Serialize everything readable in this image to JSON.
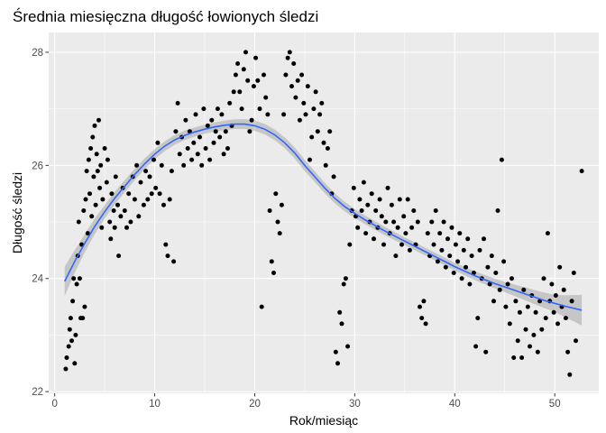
{
  "chart_data": {
    "type": "scatter",
    "title": "Średnia miesięczna długość łowionych śledzi",
    "xlabel": "Rok/miesiąc",
    "ylabel": "Długość śledzi",
    "xlim": [
      -0.6,
      54.4
    ],
    "ylim": [
      21.97,
      28.35
    ],
    "x_ticks": [
      0,
      10,
      20,
      30,
      40,
      50
    ],
    "y_ticks": [
      22,
      24,
      26,
      28
    ],
    "grid": true,
    "legend": "none",
    "colors": {
      "panel": "#ebebeb",
      "grid": "#ffffff",
      "points": "#000000",
      "smooth_line": "#3366ff",
      "ribbon": "#999999"
    },
    "points": [
      [
        1.1,
        22.4
      ],
      [
        1.2,
        22.6
      ],
      [
        1.4,
        22.8
      ],
      [
        1.5,
        23.1
      ],
      [
        1.6,
        23.3
      ],
      [
        1.7,
        22.9
      ],
      [
        1.8,
        23.6
      ],
      [
        1.9,
        24.0
      ],
      [
        2.0,
        22.5
      ],
      [
        2.1,
        23.0
      ],
      [
        2.2,
        23.9
      ],
      [
        2.3,
        24.4
      ],
      [
        2.5,
        24.0
      ],
      [
        2.6,
        23.3
      ],
      [
        2.8,
        23.3
      ],
      [
        3.0,
        23.5
      ],
      [
        2.4,
        25.0
      ],
      [
        2.7,
        24.6
      ],
      [
        2.9,
        25.2
      ],
      [
        3.1,
        25.4
      ],
      [
        3.2,
        25.9
      ],
      [
        3.3,
        24.8
      ],
      [
        3.4,
        26.1
      ],
      [
        3.5,
        25.5
      ],
      [
        3.6,
        26.3
      ],
      [
        3.7,
        25.1
      ],
      [
        3.8,
        26.5
      ],
      [
        3.9,
        25.8
      ],
      [
        4.0,
        26.7
      ],
      [
        4.1,
        25.3
      ],
      [
        4.2,
        26.2
      ],
      [
        4.3,
        25.9
      ],
      [
        4.4,
        26.8
      ],
      [
        4.5,
        25.6
      ],
      [
        4.6,
        26.0
      ],
      [
        4.7,
        24.9
      ],
      [
        4.8,
        25.4
      ],
      [
        5.0,
        26.3
      ],
      [
        5.2,
        25.7
      ],
      [
        5.3,
        26.1
      ],
      [
        5.5,
        25.0
      ],
      [
        5.6,
        24.7
      ],
      [
        5.7,
        25.5
      ],
      [
        5.9,
        25.2
      ],
      [
        6.0,
        24.9
      ],
      [
        6.1,
        25.8
      ],
      [
        6.3,
        25.3
      ],
      [
        6.4,
        24.4
      ],
      [
        6.6,
        25.1
      ],
      [
        6.8,
        25.6
      ],
      [
        7.0,
        25.2
      ],
      [
        7.2,
        24.9
      ],
      [
        7.4,
        25.5
      ],
      [
        7.6,
        25.0
      ],
      [
        7.8,
        25.8
      ],
      [
        8.0,
        25.4
      ],
      [
        8.2,
        26.0
      ],
      [
        8.4,
        25.1
      ],
      [
        8.6,
        25.7
      ],
      [
        8.9,
        25.3
      ],
      [
        9.1,
        25.9
      ],
      [
        9.3,
        25.4
      ],
      [
        9.5,
        25.8
      ],
      [
        9.7,
        25.5
      ],
      [
        9.9,
        26.1
      ],
      [
        10.1,
        25.6
      ],
      [
        10.3,
        26.4
      ],
      [
        10.5,
        25.5
      ],
      [
        10.7,
        26.0
      ],
      [
        10.9,
        25.3
      ],
      [
        11.1,
        24.6
      ],
      [
        11.3,
        24.4
      ],
      [
        11.5,
        25.4
      ],
      [
        11.7,
        25.9
      ],
      [
        11.9,
        24.3
      ],
      [
        12.1,
        26.6
      ],
      [
        12.3,
        27.1
      ],
      [
        12.5,
        26.2
      ],
      [
        12.7,
        26.5
      ],
      [
        12.9,
        26.0
      ],
      [
        13.1,
        26.8
      ],
      [
        13.3,
        26.3
      ],
      [
        13.5,
        26.6
      ],
      [
        13.7,
        26.1
      ],
      [
        13.9,
        26.4
      ],
      [
        14.1,
        26.9
      ],
      [
        14.3,
        26.2
      ],
      [
        14.5,
        26.5
      ],
      [
        14.7,
        26.0
      ],
      [
        14.9,
        27.0
      ],
      [
        15.1,
        26.3
      ],
      [
        15.3,
        26.7
      ],
      [
        15.5,
        26.1
      ],
      [
        15.7,
        26.8
      ],
      [
        15.9,
        26.4
      ],
      [
        16.1,
        26.6
      ],
      [
        16.3,
        27.0
      ],
      [
        16.5,
        26.5
      ],
      [
        16.7,
        26.9
      ],
      [
        16.9,
        26.2
      ],
      [
        17.1,
        26.6
      ],
      [
        17.3,
        26.3
      ],
      [
        17.5,
        27.1
      ],
      [
        17.7,
        26.7
      ],
      [
        17.9,
        27.3
      ],
      [
        18.1,
        27.6
      ],
      [
        18.3,
        27.8
      ],
      [
        18.5,
        27.3
      ],
      [
        18.7,
        27.0
      ],
      [
        18.9,
        27.7
      ],
      [
        19.1,
        28.0
      ],
      [
        19.3,
        27.5
      ],
      [
        19.5,
        26.6
      ],
      [
        19.7,
        26.8
      ],
      [
        19.9,
        27.4
      ],
      [
        20.1,
        27.9
      ],
      [
        20.3,
        27.5
      ],
      [
        20.5,
        27.0
      ],
      [
        20.7,
        23.5
      ],
      [
        20.9,
        27.6
      ],
      [
        21.1,
        27.2
      ],
      [
        21.3,
        26.9
      ],
      [
        21.5,
        25.2
      ],
      [
        21.7,
        24.3
      ],
      [
        21.9,
        24.1
      ],
      [
        22.1,
        25.5
      ],
      [
        22.3,
        25.0
      ],
      [
        22.5,
        24.8
      ],
      [
        22.7,
        25.3
      ],
      [
        22.9,
        26.9
      ],
      [
        23.1,
        27.6
      ],
      [
        23.3,
        27.9
      ],
      [
        23.5,
        28.0
      ],
      [
        23.7,
        27.4
      ],
      [
        23.9,
        27.8
      ],
      [
        24.1,
        27.2
      ],
      [
        24.3,
        27.5
      ],
      [
        24.5,
        26.8
      ],
      [
        24.7,
        27.6
      ],
      [
        24.9,
        27.1
      ],
      [
        25.1,
        26.9
      ],
      [
        25.3,
        27.4
      ],
      [
        25.5,
        26.1
      ],
      [
        25.7,
        26.5
      ],
      [
        25.9,
        27.0
      ],
      [
        26.1,
        27.3
      ],
      [
        26.3,
        26.6
      ],
      [
        26.5,
        26.9
      ],
      [
        26.7,
        27.1
      ],
      [
        26.9,
        26.4
      ],
      [
        27.1,
        26.0
      ],
      [
        27.3,
        26.3
      ],
      [
        27.5,
        26.6
      ],
      [
        27.7,
        25.5
      ],
      [
        27.9,
        25.8
      ],
      [
        28.1,
        22.7
      ],
      [
        28.3,
        22.5
      ],
      [
        28.5,
        23.4
      ],
      [
        28.7,
        23.2
      ],
      [
        28.9,
        23.9
      ],
      [
        29.1,
        24.0
      ],
      [
        29.3,
        22.8
      ],
      [
        29.5,
        24.6
      ],
      [
        29.7,
        25.2
      ],
      [
        29.9,
        25.6
      ],
      [
        30.1,
        25.1
      ],
      [
        30.3,
        24.9
      ],
      [
        30.5,
        25.4
      ],
      [
        30.7,
        25.2
      ],
      [
        30.9,
        25.7
      ],
      [
        31.1,
        24.8
      ],
      [
        31.3,
        25.3
      ],
      [
        31.5,
        25.0
      ],
      [
        31.7,
        25.5
      ],
      [
        31.9,
        24.7
      ],
      [
        32.1,
        25.2
      ],
      [
        32.3,
        24.9
      ],
      [
        32.5,
        25.4
      ],
      [
        32.7,
        25.1
      ],
      [
        32.9,
        24.6
      ],
      [
        33.1,
        25.0
      ],
      [
        33.3,
        25.6
      ],
      [
        33.5,
        24.8
      ],
      [
        33.7,
        25.3
      ],
      [
        33.9,
        25.0
      ],
      [
        34.1,
        24.4
      ],
      [
        34.3,
        24.9
      ],
      [
        34.5,
        25.4
      ],
      [
        34.7,
        24.6
      ],
      [
        34.9,
        25.1
      ],
      [
        35.1,
        24.8
      ],
      [
        35.3,
        25.4
      ],
      [
        35.5,
        24.5
      ],
      [
        35.7,
        24.9
      ],
      [
        35.9,
        25.2
      ],
      [
        36.1,
        24.6
      ],
      [
        36.3,
        25.0
      ],
      [
        36.5,
        23.5
      ],
      [
        36.7,
        23.3
      ],
      [
        36.9,
        23.6
      ],
      [
        37.1,
        23.2
      ],
      [
        37.3,
        24.8
      ],
      [
        37.5,
        24.4
      ],
      [
        37.7,
        25.0
      ],
      [
        37.9,
        24.6
      ],
      [
        38.1,
        25.2
      ],
      [
        38.3,
        24.3
      ],
      [
        38.5,
        24.8
      ],
      [
        38.7,
        24.5
      ],
      [
        38.9,
        25.0
      ],
      [
        39.1,
        24.2
      ],
      [
        39.3,
        24.7
      ],
      [
        39.5,
        24.4
      ],
      [
        39.7,
        24.9
      ],
      [
        39.9,
        24.1
      ],
      [
        40.1,
        24.6
      ],
      [
        40.3,
        24.3
      ],
      [
        40.5,
        24.8
      ],
      [
        40.7,
        24.0
      ],
      [
        40.9,
        24.5
      ],
      [
        41.1,
        24.2
      ],
      [
        41.3,
        24.7
      ],
      [
        41.5,
        23.9
      ],
      [
        41.7,
        24.4
      ],
      [
        41.9,
        24.1
      ],
      [
        42.1,
        22.8
      ],
      [
        42.3,
        23.3
      ],
      [
        42.5,
        24.5
      ],
      [
        42.7,
        24.0
      ],
      [
        42.9,
        24.7
      ],
      [
        43.1,
        22.7
      ],
      [
        43.3,
        24.2
      ],
      [
        43.5,
        23.9
      ],
      [
        43.7,
        24.4
      ],
      [
        43.9,
        23.6
      ],
      [
        44.1,
        24.1
      ],
      [
        44.3,
        25.2
      ],
      [
        44.5,
        23.8
      ],
      [
        44.7,
        26.1
      ],
      [
        44.9,
        24.3
      ],
      [
        45.1,
        23.5
      ],
      [
        45.3,
        23.9
      ],
      [
        45.5,
        23.2
      ],
      [
        45.7,
        24.0
      ],
      [
        45.9,
        22.6
      ],
      [
        46.1,
        23.6
      ],
      [
        46.3,
        22.9
      ],
      [
        46.5,
        23.4
      ],
      [
        46.7,
        22.6
      ],
      [
        46.9,
        23.8
      ],
      [
        47.1,
        23.1
      ],
      [
        47.3,
        23.5
      ],
      [
        47.5,
        22.8
      ],
      [
        47.7,
        23.7
      ],
      [
        47.9,
        23.0
      ],
      [
        48.1,
        23.4
      ],
      [
        48.3,
        22.7
      ],
      [
        48.5,
        23.6
      ],
      [
        48.7,
        23.1
      ],
      [
        48.9,
        24.0
      ],
      [
        49.1,
        23.3
      ],
      [
        49.3,
        24.8
      ],
      [
        49.5,
        23.6
      ],
      [
        49.7,
        23.9
      ],
      [
        49.9,
        23.4
      ],
      [
        50.1,
        23.7
      ],
      [
        50.3,
        23.2
      ],
      [
        50.5,
        24.2
      ],
      [
        50.7,
        23.5
      ],
      [
        50.9,
        23.8
      ],
      [
        51.1,
        23.3
      ],
      [
        51.3,
        22.7
      ],
      [
        51.5,
        22.3
      ],
      [
        51.7,
        23.6
      ],
      [
        51.9,
        24.1
      ],
      [
        52.1,
        22.9
      ],
      [
        52.7,
        25.9
      ]
    ],
    "smooth_line": [
      [
        1.0,
        23.95
      ],
      [
        2.0,
        24.3
      ],
      [
        3.0,
        24.62
      ],
      [
        4.0,
        24.92
      ],
      [
        5.0,
        25.18
      ],
      [
        6.0,
        25.42
      ],
      [
        7.0,
        25.63
      ],
      [
        8.0,
        25.84
      ],
      [
        9.0,
        26.03
      ],
      [
        10.0,
        26.2
      ],
      [
        11.0,
        26.34
      ],
      [
        12.0,
        26.45
      ],
      [
        13.0,
        26.53
      ],
      [
        14.0,
        26.59
      ],
      [
        15.0,
        26.64
      ],
      [
        16.0,
        26.68
      ],
      [
        17.0,
        26.71
      ],
      [
        18.0,
        26.73
      ],
      [
        19.0,
        26.73
      ],
      [
        20.0,
        26.7
      ],
      [
        21.0,
        26.64
      ],
      [
        22.0,
        26.54
      ],
      [
        23.0,
        26.4
      ],
      [
        24.0,
        26.22
      ],
      [
        25.0,
        26.0
      ],
      [
        26.0,
        25.8
      ],
      [
        27.0,
        25.6
      ],
      [
        28.0,
        25.42
      ],
      [
        29.0,
        25.27
      ],
      [
        30.0,
        25.15
      ],
      [
        31.0,
        25.04
      ],
      [
        32.0,
        24.94
      ],
      [
        33.0,
        24.84
      ],
      [
        34.0,
        24.75
      ],
      [
        35.0,
        24.66
      ],
      [
        36.0,
        24.57
      ],
      [
        37.0,
        24.48
      ],
      [
        38.0,
        24.39
      ],
      [
        39.0,
        24.3
      ],
      [
        40.0,
        24.21
      ],
      [
        41.0,
        24.13
      ],
      [
        42.0,
        24.05
      ],
      [
        43.0,
        23.98
      ],
      [
        44.0,
        23.91
      ],
      [
        45.0,
        23.85
      ],
      [
        46.0,
        23.79
      ],
      [
        47.0,
        23.73
      ],
      [
        48.0,
        23.67
      ],
      [
        49.0,
        23.61
      ],
      [
        50.0,
        23.56
      ],
      [
        51.0,
        23.51
      ],
      [
        52.0,
        23.47
      ],
      [
        52.7,
        23.44
      ]
    ],
    "ribbon_halfwidth": [
      [
        1.0,
        0.26
      ],
      [
        2.0,
        0.2
      ],
      [
        3.0,
        0.16
      ],
      [
        5.0,
        0.12
      ],
      [
        10.0,
        0.09
      ],
      [
        15.0,
        0.08
      ],
      [
        20.0,
        0.09
      ],
      [
        25.0,
        0.1
      ],
      [
        30.0,
        0.08
      ],
      [
        35.0,
        0.07
      ],
      [
        40.0,
        0.07
      ],
      [
        45.0,
        0.09
      ],
      [
        50.0,
        0.15
      ],
      [
        52.7,
        0.27
      ]
    ]
  }
}
